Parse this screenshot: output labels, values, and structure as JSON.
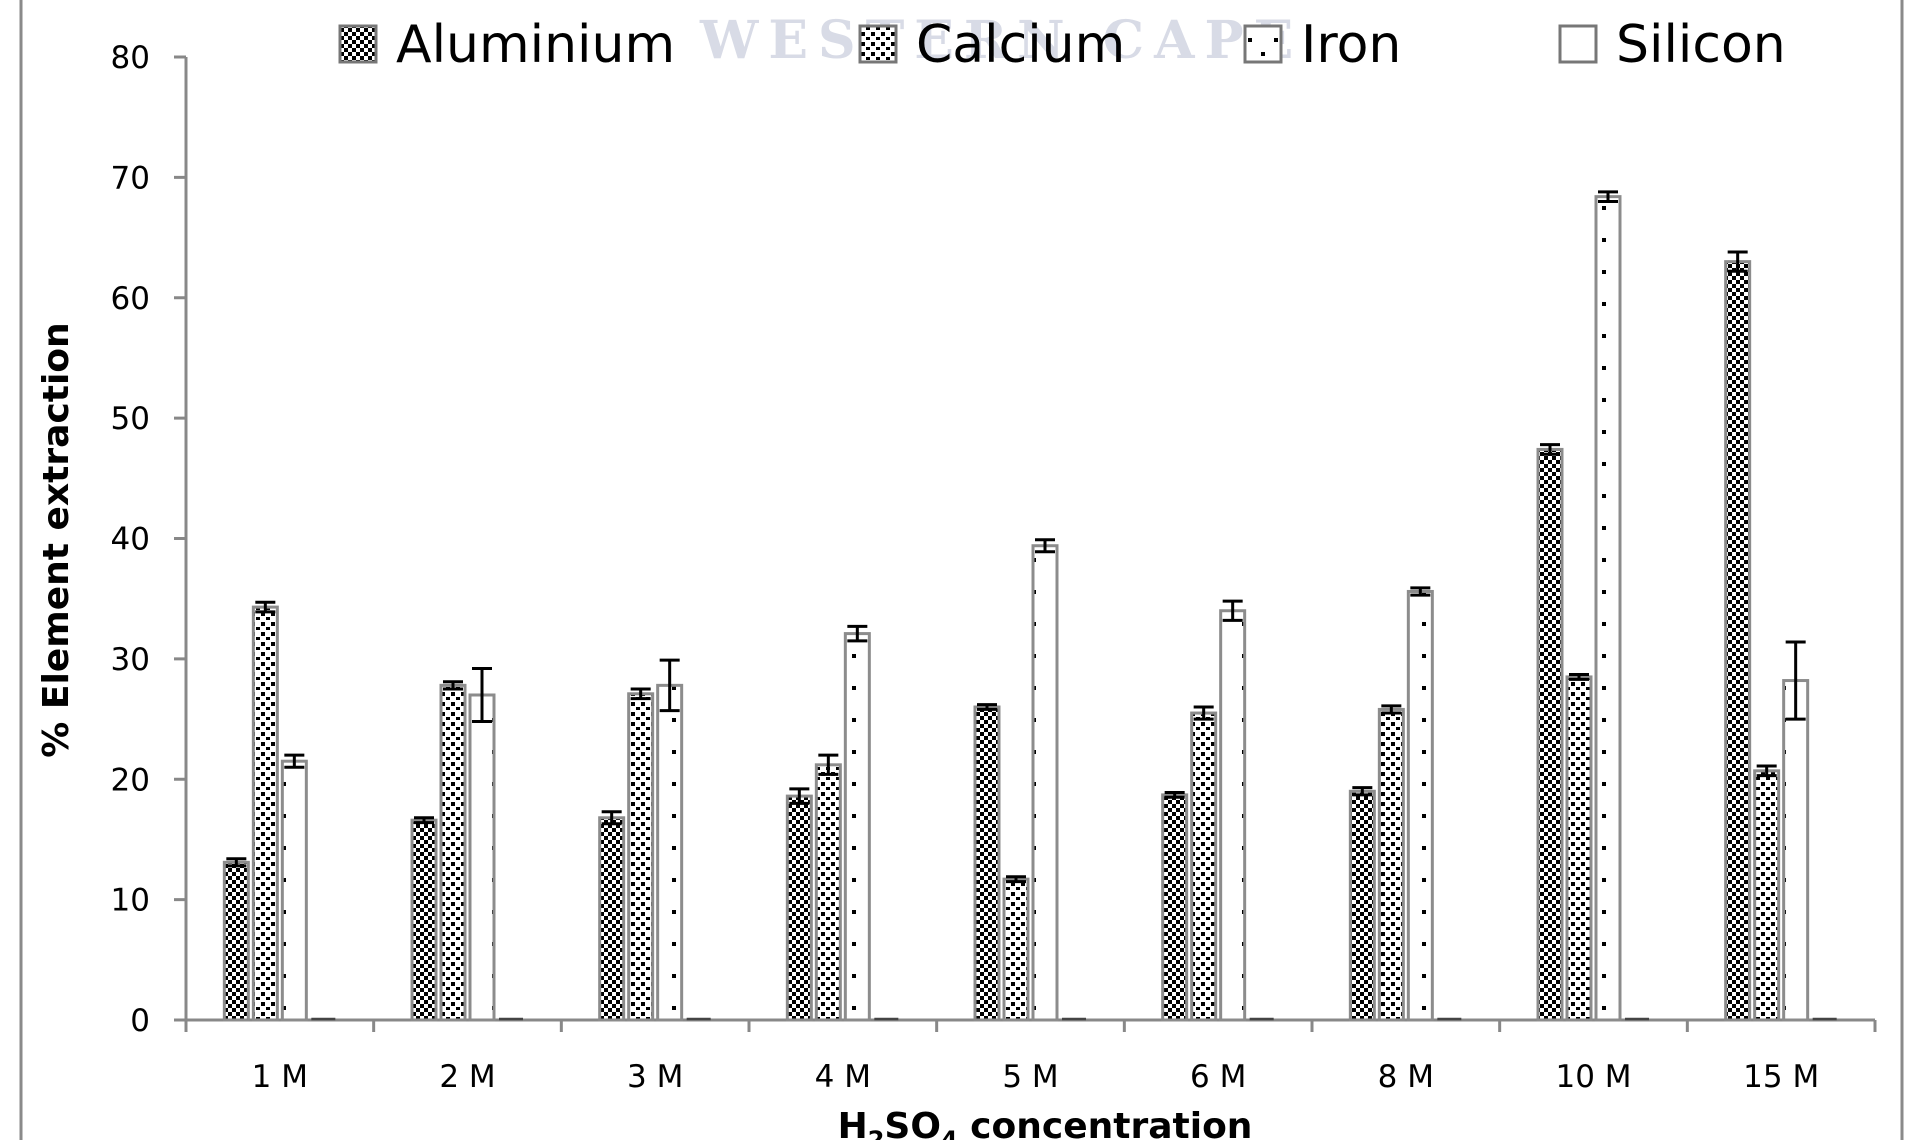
{
  "chart_data": {
    "type": "bar",
    "title": "",
    "xlabel": "H2SO4 concentration",
    "xlabel_parts": {
      "a": "H",
      "sub1": "2",
      "b": "SO",
      "sub2": "4",
      "c": " concentration"
    },
    "ylabel": "% Element extraction",
    "ylim": [
      0,
      80
    ],
    "yticks": [
      0,
      10,
      20,
      30,
      40,
      50,
      60,
      70,
      80
    ],
    "grid": false,
    "legend_position": "top",
    "categories": [
      "1 M",
      "2 M",
      "3 M",
      "4 M",
      "5 M",
      "6 M",
      "8 M",
      "10 M",
      "15 M"
    ],
    "series": [
      {
        "name": "Aluminium",
        "pattern": "checker",
        "values": [
          13.1,
          16.6,
          16.8,
          18.6,
          26.0,
          18.7,
          19.0,
          47.4,
          63.0
        ],
        "errors": [
          0.3,
          0.2,
          0.5,
          0.6,
          0.2,
          0.2,
          0.3,
          0.4,
          0.8
        ]
      },
      {
        "name": "Calcium",
        "pattern": "dense-dots",
        "values": [
          34.3,
          27.8,
          27.1,
          21.2,
          11.7,
          25.5,
          25.8,
          28.5,
          20.7
        ],
        "errors": [
          0.4,
          0.3,
          0.4,
          0.8,
          0.2,
          0.5,
          0.3,
          0.2,
          0.4
        ]
      },
      {
        "name": "Iron",
        "pattern": "sparse-dots",
        "values": [
          21.5,
          27.0,
          27.8,
          32.1,
          39.4,
          34.0,
          35.6,
          68.4,
          28.2
        ],
        "errors": [
          0.5,
          2.2,
          2.1,
          0.6,
          0.5,
          0.8,
          0.3,
          0.4,
          3.2
        ]
      },
      {
        "name": "Silicon",
        "pattern": "empty",
        "values": [
          0.1,
          0.0,
          0.0,
          0.0,
          0.0,
          0.0,
          0.0,
          0.0,
          0.0
        ],
        "errors": [
          0,
          0,
          0,
          0,
          0,
          0,
          0,
          0,
          0
        ]
      }
    ]
  },
  "watermark": "WESTERN CAPE",
  "colors": {
    "axis": "#888888",
    "bar_outline": "#8c8c8c",
    "pattern": "#000000",
    "border": "#8a8a8a"
  }
}
